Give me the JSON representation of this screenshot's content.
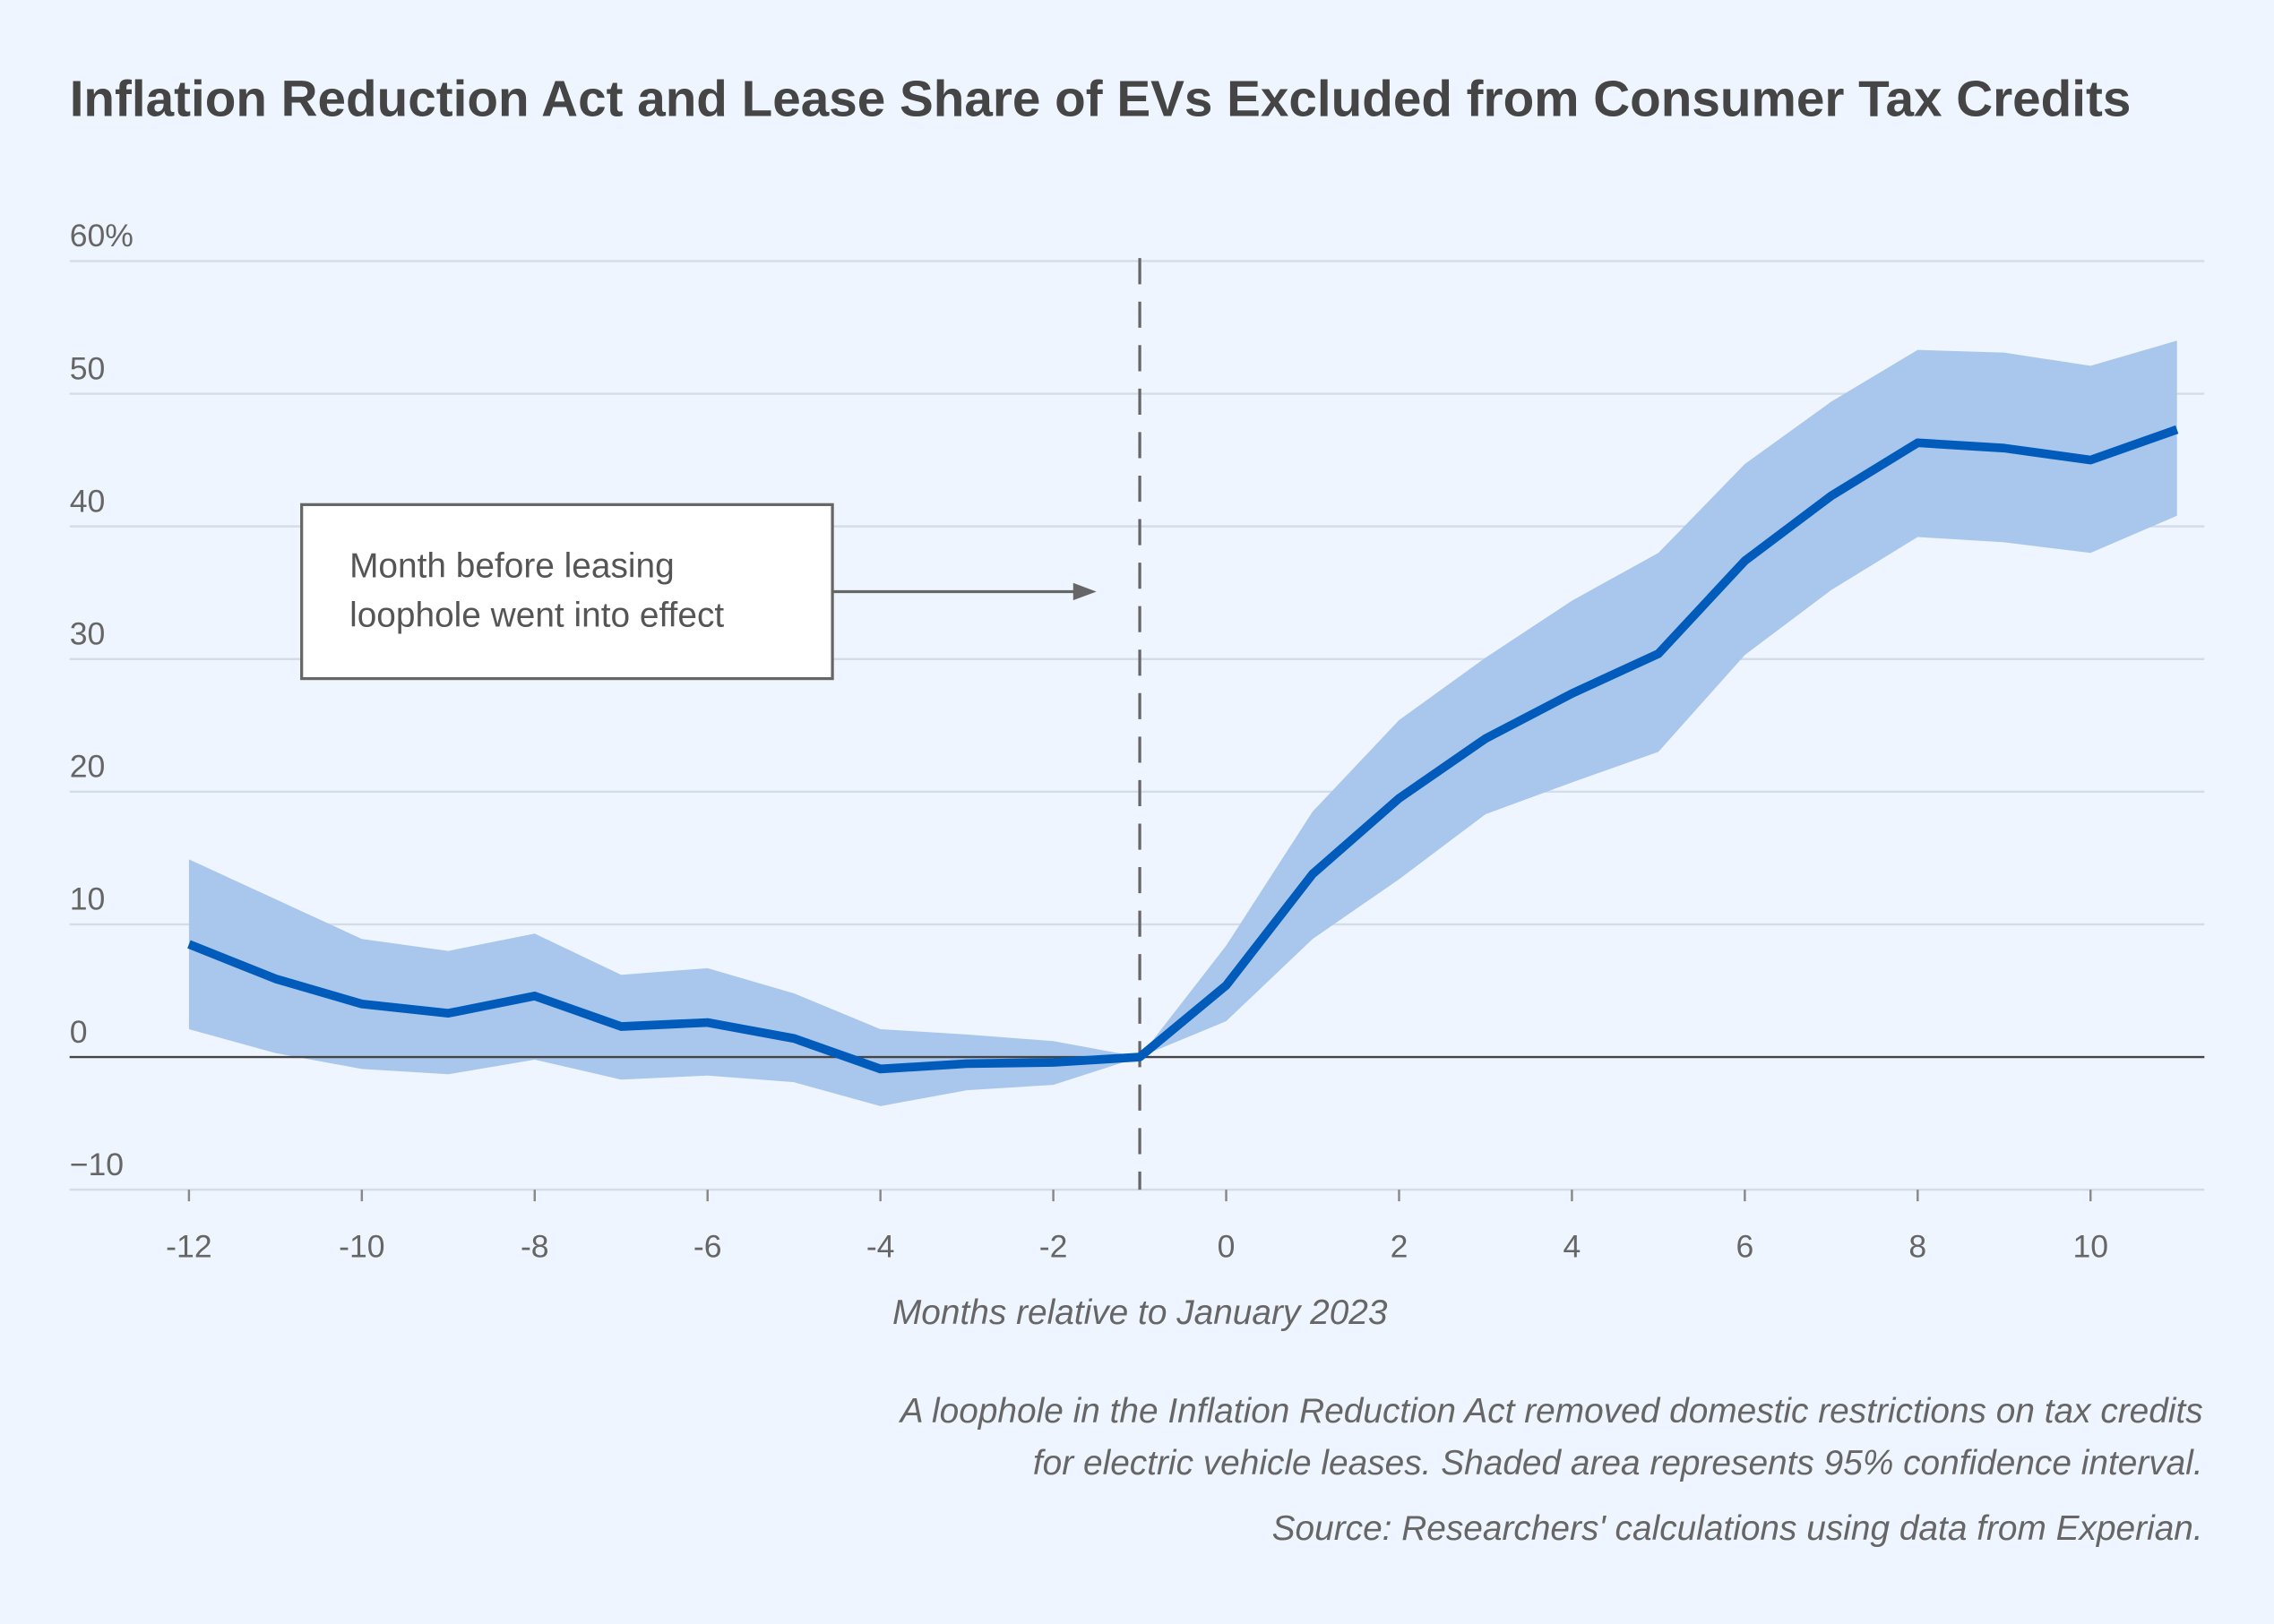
{
  "chart_data": {
    "type": "line",
    "title": "Inflation Reduction Act and Lease Share of EVs Excluded from Consumer Tax Credits",
    "xlabel": "Months relative to January 2023",
    "ylabel": "",
    "xlim": [
      -13.5,
      11.5
    ],
    "ylim": [
      -10,
      60
    ],
    "x_ticks": [
      -12,
      -10,
      -8,
      -6,
      -4,
      -2,
      0,
      2,
      4,
      6,
      8,
      10
    ],
    "x_tick_labels": [
      "-12",
      "-10",
      "-8",
      "-6",
      "-4",
      "-2",
      "0",
      "2",
      "4",
      "6",
      "8",
      "10"
    ],
    "y_ticks": [
      -10,
      0,
      10,
      20,
      30,
      40,
      50,
      60
    ],
    "y_tick_labels": [
      "−10",
      "0",
      "10",
      "20",
      "30",
      "40",
      "50",
      "60%"
    ],
    "grid": "horizontal",
    "x": [
      -12,
      -11,
      -10,
      -9,
      -8,
      -7,
      -6,
      -5,
      -4,
      -3,
      -2,
      -1,
      0,
      1,
      2,
      3,
      4,
      5,
      6,
      7,
      8,
      9,
      10,
      11
    ],
    "series": [
      {
        "values": [
          8.5,
          5.9,
          4.0,
          3.3,
          4.6,
          2.3,
          2.6,
          1.4,
          -0.9,
          -0.5,
          -0.4,
          0,
          5.4,
          13.8,
          19.5,
          24.0,
          27.4,
          30.4,
          37.4,
          42.3,
          46.3,
          45.9,
          45.0,
          47.3
        ],
        "ci_upper": [
          14.9,
          11.9,
          8.9,
          8.0,
          9.3,
          6.2,
          6.7,
          4.8,
          2.1,
          1.7,
          1.2,
          0,
          8.4,
          18.5,
          25.4,
          30.1,
          34.4,
          38.0,
          44.7,
          49.4,
          53.3,
          53.1,
          52.1,
          54.0
        ],
        "ci_lower": [
          2.1,
          0.3,
          -0.9,
          -1.3,
          -0.2,
          -1.7,
          -1.4,
          -1.9,
          -3.7,
          -2.5,
          -2.1,
          0,
          2.7,
          8.9,
          13.4,
          18.3,
          20.7,
          23.0,
          30.3,
          35.2,
          39.2,
          38.8,
          38.0,
          40.8
        ],
        "color": "#005bbb",
        "band_color": "#a9c7ec"
      }
    ],
    "reference_line_x": -1,
    "annotation": {
      "line1": "Month before leasing",
      "line2": "loophole went into effect"
    },
    "notes": [
      "A loophole in the Inflation Reduction Act removed domestic restrictions on tax credits",
      "for electric vehicle leases. Shaded area represents 95% confidence interval.",
      "Source: Researchers' calculations using data from Experian."
    ]
  }
}
